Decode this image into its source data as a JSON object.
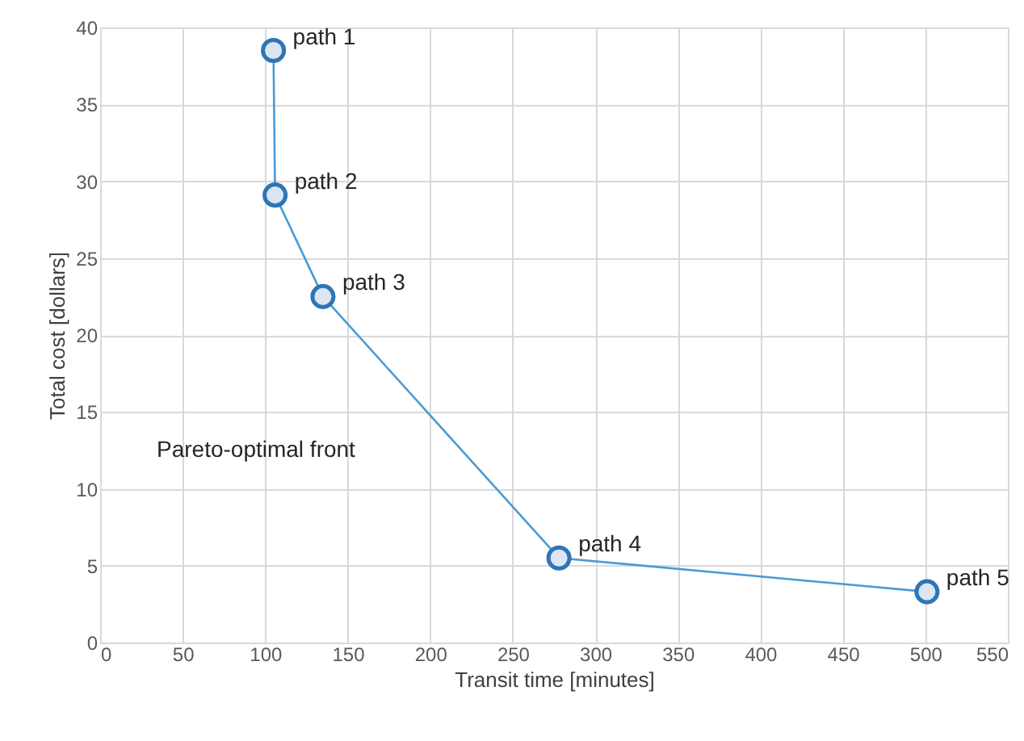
{
  "chart_data": {
    "type": "line",
    "xlabel": "Transit time [minutes]",
    "ylabel": "Total cost [dollars]",
    "x": [
      105,
      106,
      135,
      278,
      501
    ],
    "series": [
      {
        "color": "#4a9bd4",
        "values": [
          38.5,
          29.1,
          22.5,
          5.5,
          3.3
        ]
      }
    ],
    "xlim": [
      0,
      550
    ],
    "xticks": [
      0,
      50,
      100,
      150,
      200,
      250,
      300,
      350,
      400,
      450,
      500,
      550
    ],
    "ylim": [
      0,
      40
    ],
    "yticks": [
      0,
      5,
      10,
      15,
      20,
      25,
      30,
      35,
      40
    ],
    "grid": true,
    "marker": "circle",
    "line_style": "solid",
    "annotations": [
      {
        "text": "path 1",
        "x": 105,
        "y": 38.5
      },
      {
        "text": "path 2",
        "x": 106,
        "y": 29.1
      },
      {
        "text": "path 3",
        "x": 135,
        "y": 22.5
      },
      {
        "text": "path 4",
        "x": 278,
        "y": 5.5
      },
      {
        "text": "path 5",
        "x": 501,
        "y": 3.3
      },
      "Pareto-optimal front"
    ]
  }
}
